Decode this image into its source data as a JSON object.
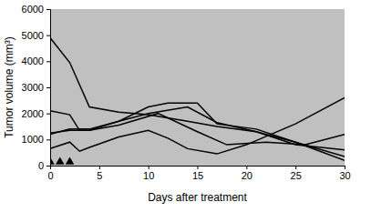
{
  "chart_data": {
    "type": "line",
    "x_label": "Days after treatment",
    "y_label": "Tumor volume (mm³)",
    "xlim": [
      0,
      30
    ],
    "xticks": [
      0,
      5,
      10,
      15,
      20,
      25,
      30
    ],
    "ylim": [
      0,
      6000
    ],
    "yticks": [
      0,
      1000,
      2000,
      3000,
      4000,
      5000,
      6000
    ],
    "grid": false,
    "series": [
      {
        "color": "#000000",
        "x": [
          0,
          2,
          4,
          7,
          10,
          14,
          17,
          21,
          25,
          30
        ],
        "values": [
          4900,
          3950,
          2250,
          2050,
          1950,
          1700,
          1500,
          1300,
          900,
          200
        ]
      },
      {
        "color": "#000000",
        "x": [
          0,
          2,
          3,
          4,
          7,
          10,
          14,
          17,
          21,
          25,
          30
        ],
        "values": [
          2100,
          1950,
          1350,
          1350,
          1700,
          2000,
          2250,
          1650,
          1300,
          800,
          600
        ]
      },
      {
        "color": "#000000",
        "x": [
          0,
          2,
          4,
          7,
          10,
          12,
          15,
          17,
          21,
          25,
          30
        ],
        "values": [
          1200,
          1400,
          1400,
          1700,
          2250,
          2400,
          2400,
          1600,
          1400,
          900,
          350
        ]
      },
      {
        "color": "#000000",
        "x": [
          0,
          2,
          3,
          4,
          7,
          10,
          12,
          14,
          17,
          20,
          25,
          30
        ],
        "values": [
          650,
          900,
          550,
          700,
          1100,
          1350,
          1050,
          650,
          450,
          800,
          1600,
          2600
        ]
      },
      {
        "color": "#000000",
        "x": [
          0,
          2,
          4,
          7,
          11,
          15,
          18,
          22,
          26,
          30
        ],
        "values": [
          1250,
          1350,
          1350,
          1550,
          2000,
          1300,
          800,
          900,
          800,
          1200
        ]
      },
      {
        "type": "scatter",
        "marker": "triangle",
        "color": "#000000",
        "x": [
          0,
          1,
          2
        ],
        "values": [
          0,
          0,
          0
        ]
      }
    ]
  }
}
